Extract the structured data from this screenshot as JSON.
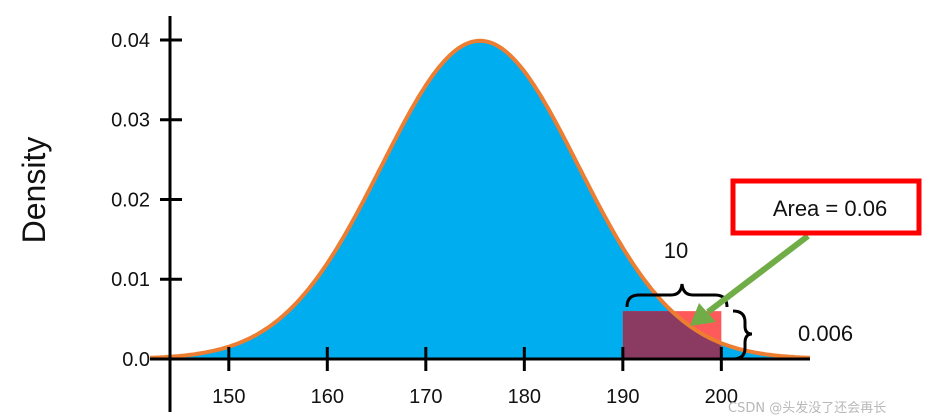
{
  "chart_data": {
    "type": "area",
    "title": "",
    "xlabel": "",
    "ylabel": "Density",
    "distribution": {
      "kind": "normal",
      "mean": 175.5,
      "sd": 10
    },
    "xlim": [
      142,
      209
    ],
    "ylim": [
      0,
      0.0425
    ],
    "x_ticks": [
      150,
      160,
      170,
      180,
      190,
      200
    ],
    "x_tick_labels": [
      "150",
      "160",
      "170",
      "180",
      "190",
      "200"
    ],
    "y_ticks": [
      0.0,
      0.01,
      0.02,
      0.03,
      0.04
    ],
    "y_tick_labels": [
      "0.0",
      "0.01",
      "0.02",
      "0.03",
      "0.04"
    ],
    "highlight_region": {
      "x_start": 190,
      "x_end": 200,
      "height": 0.006
    },
    "annotations": {
      "width_label": "10",
      "height_label": "0.006",
      "area_label": "Area = 0.06"
    },
    "colors": {
      "fill": "#00aeef",
      "curve": "#ed7d31",
      "rect": "#8b3a62",
      "rect_over": "#ff5a5a",
      "arrow": "#70ad47",
      "box_border": "#ff0000"
    }
  },
  "watermark": "CSDN @头发没了还会再长"
}
